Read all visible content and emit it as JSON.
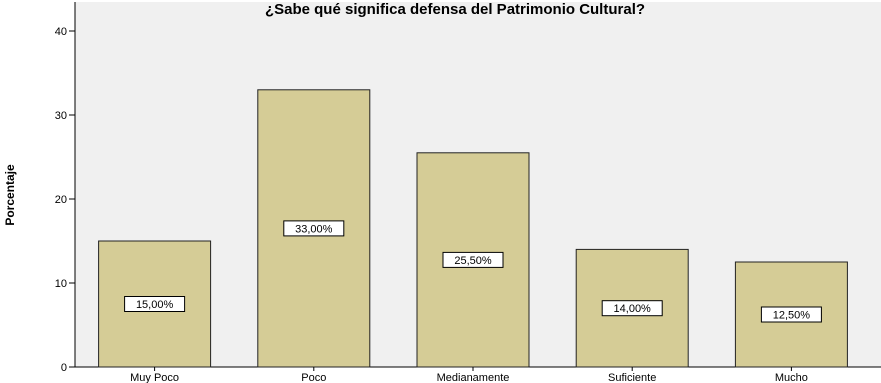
{
  "chart_data": {
    "type": "bar",
    "title": "¿Sabe qué significa defensa del Patrimonio Cultural?",
    "xlabel": "",
    "ylabel": "Porcentaje",
    "categories": [
      "Muy Poco",
      "Poco",
      "Medianamente",
      "Suficiente",
      "Mucho"
    ],
    "values": [
      15.0,
      33.0,
      25.5,
      14.0,
      12.5
    ],
    "data_labels": [
      "15,00%",
      "33,00%",
      "25,50%",
      "14,00%",
      "12,50%"
    ],
    "ylim": [
      0,
      40
    ],
    "yticks": [
      0,
      10,
      20,
      30,
      40
    ],
    "grid": false,
    "legend": "none",
    "colors": {
      "bar_fill": "#D5CC96",
      "bar_stroke": "#222222",
      "plot_background": "#F0F0F0",
      "page_background": "#FFFFFF"
    }
  }
}
